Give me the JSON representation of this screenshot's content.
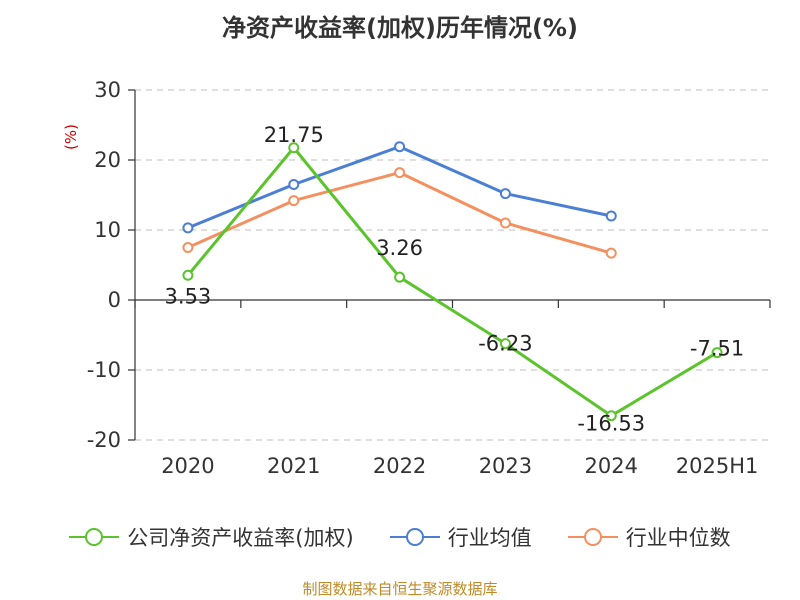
{
  "title": "净资产收益率(加权)历年情况(%)",
  "source": "制图数据来自恒生聚源数据库",
  "chart_data": {
    "type": "line",
    "title": "净资产收益率(加权)历年情况(%)",
    "ylabel": "(%)",
    "xlabel": "",
    "categories": [
      "2020",
      "2021",
      "2022",
      "2023",
      "2024",
      "2025H1"
    ],
    "ylim": [
      -20,
      30
    ],
    "yticks": [
      30,
      20,
      10,
      0,
      -10,
      -20
    ],
    "grid": true,
    "legend_position": "bottom",
    "series": [
      {
        "name": "公司净资产收益率(加权)",
        "color": "#5bc42c",
        "values": [
          3.53,
          21.75,
          3.26,
          -6.23,
          -16.53,
          -7.51
        ],
        "labels": [
          "3.53",
          "21.75",
          "3.26",
          "-6.23",
          "-16.53",
          "-7.51"
        ]
      },
      {
        "name": "行业均值",
        "color": "#4a7fd4",
        "values": [
          10.3,
          16.5,
          21.9,
          15.2,
          12.0,
          null
        ]
      },
      {
        "name": "行业中位数",
        "color": "#f49060",
        "values": [
          7.5,
          14.2,
          18.2,
          11.0,
          6.7,
          null
        ]
      }
    ]
  }
}
